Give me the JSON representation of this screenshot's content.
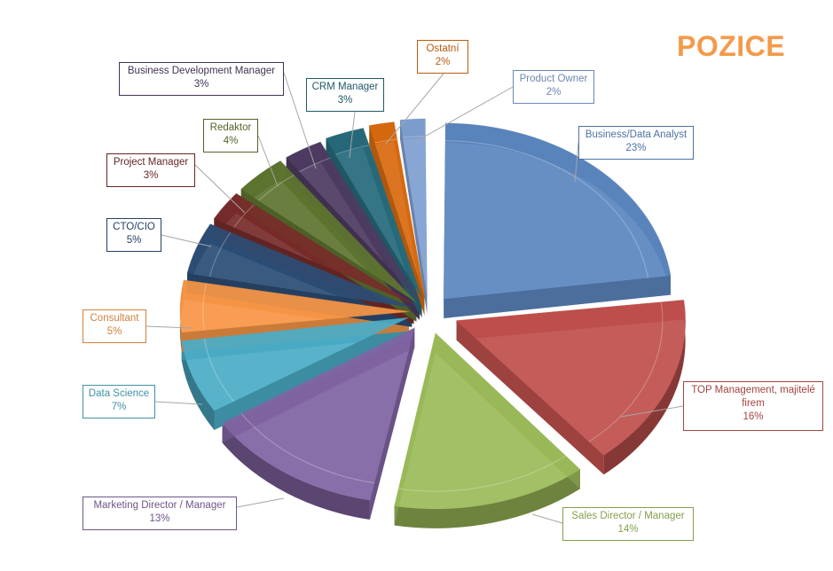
{
  "chart_data": {
    "type": "pie",
    "title": "POZICE",
    "categories": [
      "Business/Data Analyst",
      "TOP Management, majitelé firem",
      "Sales Director / Manager",
      "Marketing Director / Manager",
      "Data Science",
      "Consultant",
      "CTO/CIO",
      "Project Manager",
      "Redaktor",
      "Business Development Manager",
      "CRM Manager",
      "Ostatní",
      "Product Owner"
    ],
    "values": [
      23,
      16,
      14,
      13,
      7,
      5,
      5,
      3,
      4,
      3,
      3,
      2,
      2
    ],
    "value_labels": [
      "23%",
      "16%",
      "14%",
      "13%",
      "7%",
      "5%",
      "5%",
      "3%",
      "4%",
      "3%",
      "3%",
      "2%",
      "2%"
    ],
    "colors": [
      "#5b86c0",
      "#c0504d",
      "#9bbb59",
      "#8064a2",
      "#4bacc6",
      "#f79646",
      "#2c4d75",
      "#772c2a",
      "#5f7530",
      "#4d3b62",
      "#276a7c",
      "#d86b10",
      "#7f9fd1"
    ],
    "exploded": true,
    "legend": "none"
  }
}
